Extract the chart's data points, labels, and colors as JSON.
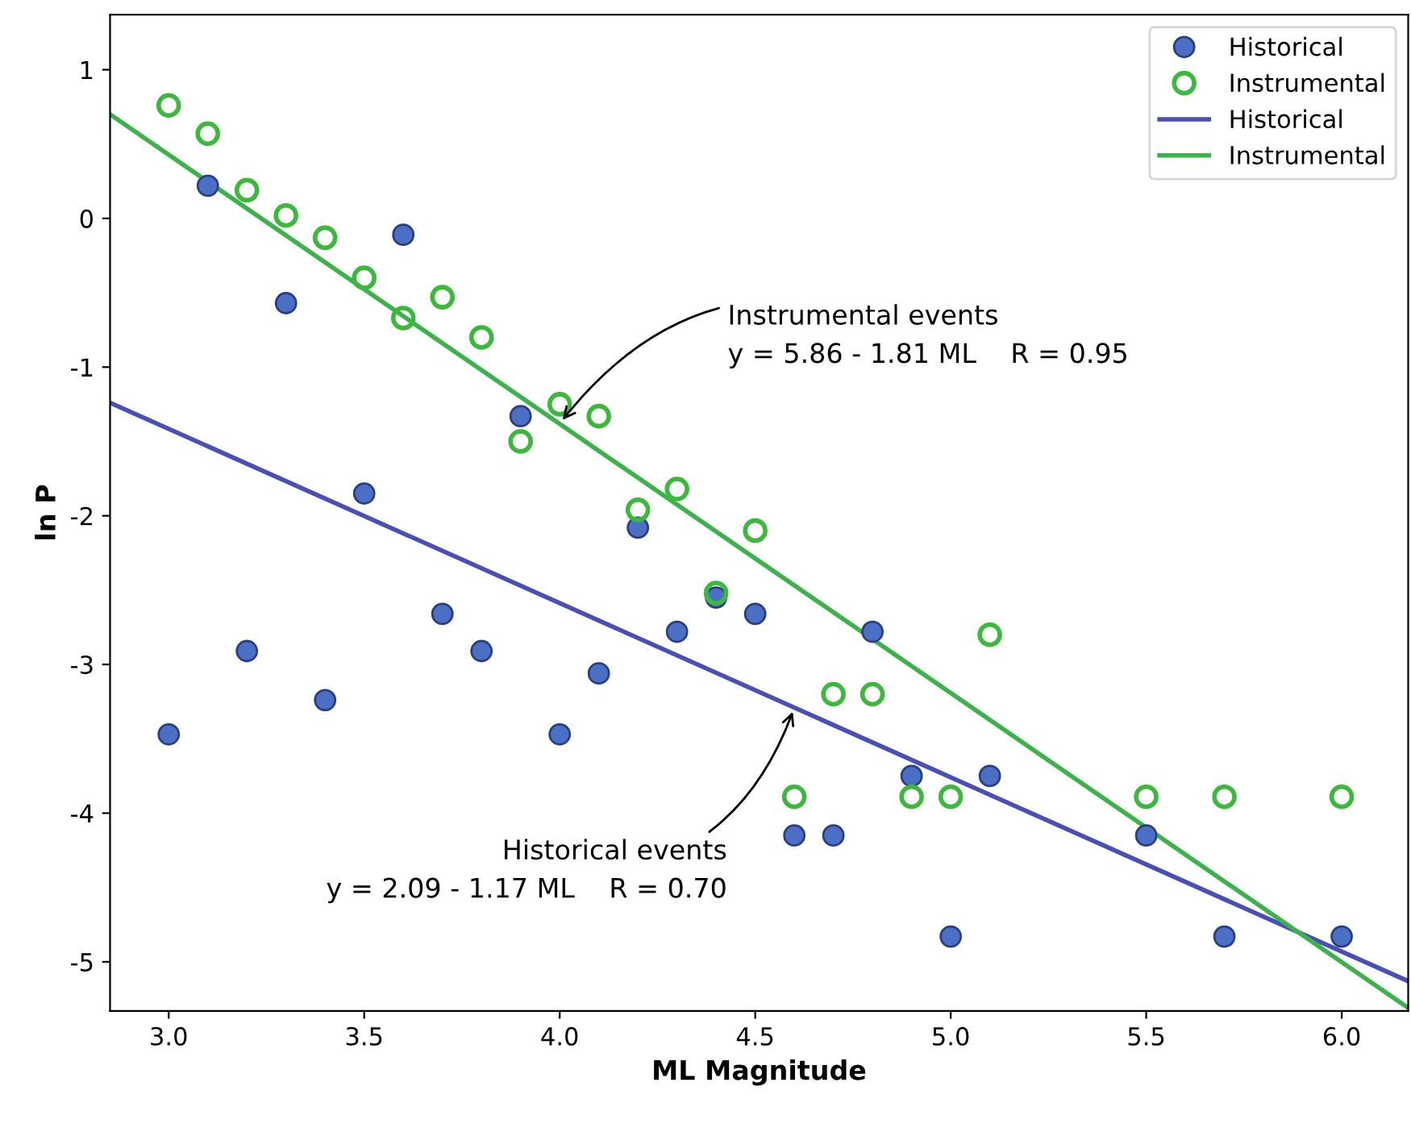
{
  "chart_data": {
    "type": "scatter",
    "xlabel": "ML Magnitude",
    "ylabel": "ln P",
    "xlim": [
      2.85,
      6.17
    ],
    "ylim": [
      -5.33,
      1.37
    ],
    "xticks": [
      {
        "value": 3.0,
        "label": "3.0"
      },
      {
        "value": 3.5,
        "label": "3.5"
      },
      {
        "value": 4.0,
        "label": "4.0"
      },
      {
        "value": 4.5,
        "label": "4.5"
      },
      {
        "value": 5.0,
        "label": "5.0"
      },
      {
        "value": 5.5,
        "label": "5.5"
      },
      {
        "value": 6.0,
        "label": "6.0"
      }
    ],
    "yticks": [
      1,
      0,
      -1,
      -2,
      -3,
      -4,
      -5
    ],
    "grid": false,
    "legend": "top right",
    "series": [
      {
        "name": "Historical",
        "marker": "circle",
        "color": "#4a6fc4",
        "x": [
          3.0,
          3.1,
          3.2,
          3.3,
          3.4,
          3.5,
          3.6,
          3.7,
          3.8,
          3.9,
          4.0,
          4.1,
          4.2,
          4.3,
          4.4,
          4.5,
          4.6,
          4.7,
          4.8,
          4.9,
          5.0,
          5.1,
          5.5,
          5.7,
          6.0
        ],
        "values": [
          -3.47,
          0.22,
          -2.91,
          -0.57,
          -3.24,
          -1.85,
          -0.11,
          -2.66,
          -2.91,
          -1.33,
          -3.47,
          -3.06,
          -2.08,
          -2.78,
          -2.55,
          -2.66,
          -4.15,
          -4.15,
          -2.78,
          -3.75,
          -4.83,
          -3.75,
          -4.15,
          -4.83,
          -4.83
        ]
      },
      {
        "name": "Instrumental",
        "marker": "circle",
        "color": "#3cb83c",
        "x": [
          3.0,
          3.1,
          3.2,
          3.3,
          3.4,
          3.5,
          3.6,
          3.7,
          3.8,
          3.9,
          4.0,
          4.1,
          4.2,
          4.3,
          4.4,
          4.5,
          4.6,
          4.7,
          4.8,
          4.9,
          5.0,
          5.1,
          5.5,
          5.7,
          6.0
        ],
        "values": [
          0.76,
          0.57,
          0.19,
          0.02,
          -0.13,
          -0.4,
          -0.67,
          -0.53,
          -0.8,
          -1.5,
          -1.25,
          -1.33,
          -1.96,
          -1.82,
          -2.52,
          -2.1,
          -3.89,
          -3.2,
          -3.2,
          -3.89,
          -3.89,
          -2.8,
          -3.89,
          -3.89,
          -3.89
        ]
      },
      {
        "name": "Historical",
        "type": "line",
        "marker": "none",
        "color": "#4a4fb8",
        "x": [
          2.85,
          6.17
        ],
        "values": [
          -1.24,
          -5.13
        ]
      },
      {
        "name": "Instrumental",
        "type": "line",
        "marker": "none",
        "color": "#3cb34a",
        "x": [
          2.85,
          6.17
        ],
        "values": [
          0.7,
          -5.31
        ]
      }
    ],
    "annotations": [
      {
        "text": "Instrumental events\ny = 5.86 - 1.81 ML    R = 0.95",
        "x": 4.0,
        "y": -1.38
      },
      {
        "text": "Historical events\ny = 2.09 - 1.17 ML    R = 0.70",
        "x": 4.6,
        "y": -3.29
      }
    ]
  }
}
